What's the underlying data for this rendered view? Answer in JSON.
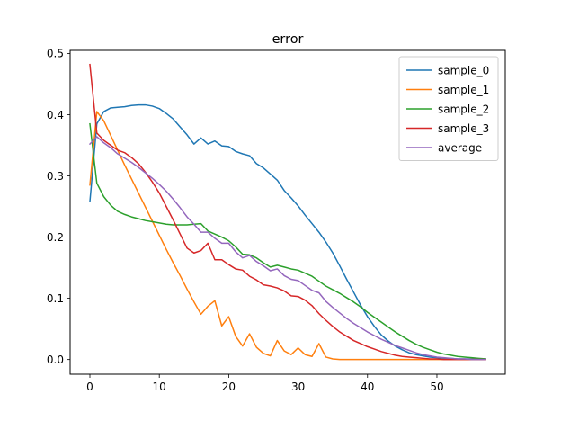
{
  "chart_data": {
    "type": "line",
    "title": "error",
    "xlabel": "",
    "ylabel": "",
    "xlim": [
      -2.85,
      59.85
    ],
    "ylim": [
      -0.024,
      0.505
    ],
    "xticks": [
      0,
      10,
      20,
      30,
      40,
      50
    ],
    "yticks": [
      0.0,
      0.1,
      0.2,
      0.3,
      0.4,
      0.5
    ],
    "xtick_labels": [
      "0",
      "10",
      "20",
      "30",
      "40",
      "50"
    ],
    "ytick_labels": [
      "0.0",
      "0.1",
      "0.2",
      "0.3",
      "0.4",
      "0.5"
    ],
    "grid": false,
    "legend_position": "upper right",
    "series": [
      {
        "name": "sample_0",
        "color": "#1f77b4",
        "x": [
          0,
          1,
          2,
          3,
          4,
          5,
          6,
          7,
          8,
          9,
          10,
          11,
          12,
          13,
          14,
          15,
          16,
          17,
          18,
          19,
          20,
          21,
          22,
          23,
          24,
          25,
          26,
          27,
          28,
          29,
          30,
          31,
          32,
          33,
          34,
          35,
          36,
          37,
          38,
          39,
          40,
          41,
          42,
          43,
          44,
          45,
          46,
          47,
          48,
          49,
          50,
          51,
          52,
          53,
          54,
          55,
          56,
          57
        ],
        "y": [
          0.258,
          0.385,
          0.405,
          0.411,
          0.412,
          0.413,
          0.415,
          0.416,
          0.416,
          0.414,
          0.41,
          0.402,
          0.393,
          0.38,
          0.367,
          0.352,
          0.362,
          0.352,
          0.357,
          0.349,
          0.348,
          0.34,
          0.336,
          0.333,
          0.32,
          0.313,
          0.303,
          0.293,
          0.276,
          0.264,
          0.251,
          0.236,
          0.222,
          0.208,
          0.192,
          0.174,
          0.153,
          0.131,
          0.11,
          0.089,
          0.07,
          0.054,
          0.04,
          0.03,
          0.022,
          0.016,
          0.011,
          0.008,
          0.006,
          0.004,
          0.003,
          0.002,
          0.002,
          0.001,
          0.001,
          0.001,
          0.001,
          0.001
        ]
      },
      {
        "name": "sample_1",
        "color": "#ff7f0e",
        "x": [
          0,
          1,
          2,
          3,
          4,
          5,
          6,
          7,
          8,
          9,
          10,
          11,
          12,
          13,
          14,
          15,
          16,
          17,
          18,
          19,
          20,
          21,
          22,
          23,
          24,
          25,
          26,
          27,
          28,
          29,
          30,
          31,
          32,
          33,
          34,
          35,
          36,
          37,
          38,
          39,
          40,
          41,
          42,
          43,
          44,
          45,
          46,
          47,
          48,
          49,
          50,
          51,
          52,
          53,
          54,
          55,
          56,
          57
        ],
        "y": [
          0.285,
          0.405,
          0.39,
          0.366,
          0.342,
          0.318,
          0.295,
          0.272,
          0.249,
          0.226,
          0.203,
          0.18,
          0.158,
          0.137,
          0.115,
          0.094,
          0.074,
          0.087,
          0.096,
          0.055,
          0.07,
          0.038,
          0.022,
          0.042,
          0.02,
          0.01,
          0.006,
          0.031,
          0.014,
          0.008,
          0.019,
          0.008,
          0.005,
          0.026,
          0.004,
          0.001,
          0,
          0,
          0,
          0,
          0,
          0,
          0,
          0,
          0,
          0,
          0,
          0,
          0,
          0,
          0,
          0,
          0,
          0,
          0,
          0,
          0,
          0
        ]
      },
      {
        "name": "sample_2",
        "color": "#2ca02c",
        "x": [
          0,
          1,
          2,
          3,
          4,
          5,
          6,
          7,
          8,
          9,
          10,
          11,
          12,
          13,
          14,
          15,
          16,
          17,
          18,
          19,
          20,
          21,
          22,
          23,
          24,
          25,
          26,
          27,
          28,
          29,
          30,
          31,
          32,
          33,
          34,
          35,
          36,
          37,
          38,
          39,
          40,
          41,
          42,
          43,
          44,
          45,
          46,
          47,
          48,
          49,
          50,
          51,
          52,
          53,
          54,
          55,
          56,
          57
        ],
        "y": [
          0.385,
          0.288,
          0.266,
          0.252,
          0.242,
          0.237,
          0.233,
          0.23,
          0.227,
          0.225,
          0.223,
          0.221,
          0.22,
          0.22,
          0.22,
          0.221,
          0.222,
          0.21,
          0.205,
          0.2,
          0.194,
          0.184,
          0.172,
          0.171,
          0.166,
          0.158,
          0.151,
          0.154,
          0.151,
          0.148,
          0.146,
          0.141,
          0.136,
          0.128,
          0.12,
          0.114,
          0.108,
          0.101,
          0.094,
          0.086,
          0.077,
          0.069,
          0.061,
          0.053,
          0.045,
          0.038,
          0.031,
          0.025,
          0.02,
          0.016,
          0.012,
          0.009,
          0.007,
          0.005,
          0.004,
          0.003,
          0.002,
          0.001
        ]
      },
      {
        "name": "sample_3",
        "color": "#d62728",
        "x": [
          0,
          1,
          2,
          3,
          4,
          5,
          6,
          7,
          8,
          9,
          10,
          11,
          12,
          13,
          14,
          15,
          16,
          17,
          18,
          19,
          20,
          21,
          22,
          23,
          24,
          25,
          26,
          27,
          28,
          29,
          30,
          31,
          32,
          33,
          34,
          35,
          36,
          37,
          38,
          39,
          40,
          41,
          42,
          43,
          44,
          45,
          46,
          47,
          48,
          49,
          50,
          51,
          52,
          53,
          54,
          55,
          56,
          57
        ],
        "y": [
          0.482,
          0.37,
          0.358,
          0.35,
          0.342,
          0.338,
          0.33,
          0.32,
          0.306,
          0.29,
          0.272,
          0.25,
          0.228,
          0.205,
          0.182,
          0.174,
          0.178,
          0.19,
          0.163,
          0.163,
          0.155,
          0.148,
          0.146,
          0.136,
          0.13,
          0.122,
          0.12,
          0.117,
          0.112,
          0.104,
          0.103,
          0.097,
          0.088,
          0.075,
          0.064,
          0.054,
          0.045,
          0.038,
          0.031,
          0.026,
          0.021,
          0.017,
          0.013,
          0.01,
          0.007,
          0.005,
          0.004,
          0.003,
          0.002,
          0.001,
          0.001,
          0,
          0,
          0,
          0,
          0,
          0,
          0
        ]
      },
      {
        "name": "average",
        "color": "#9467bd",
        "x": [
          0,
          1,
          2,
          3,
          4,
          5,
          6,
          7,
          8,
          9,
          10,
          11,
          12,
          13,
          14,
          15,
          16,
          17,
          18,
          19,
          20,
          21,
          22,
          23,
          24,
          25,
          26,
          27,
          28,
          29,
          30,
          31,
          32,
          33,
          34,
          35,
          36,
          37,
          38,
          39,
          40,
          41,
          42,
          43,
          44,
          45,
          46,
          47,
          48,
          49,
          50,
          51,
          52,
          53,
          54,
          55,
          56,
          57
        ],
        "y": [
          0.352,
          0.364,
          0.354,
          0.346,
          0.336,
          0.329,
          0.322,
          0.314,
          0.305,
          0.296,
          0.286,
          0.275,
          0.262,
          0.248,
          0.233,
          0.221,
          0.208,
          0.208,
          0.198,
          0.19,
          0.19,
          0.176,
          0.166,
          0.17,
          0.16,
          0.153,
          0.145,
          0.148,
          0.137,
          0.131,
          0.129,
          0.121,
          0.113,
          0.109,
          0.095,
          0.085,
          0.076,
          0.067,
          0.059,
          0.052,
          0.045,
          0.039,
          0.033,
          0.028,
          0.023,
          0.019,
          0.015,
          0.011,
          0.008,
          0.006,
          0.004,
          0.003,
          0.002,
          0.001,
          0.001,
          0,
          0,
          0
        ]
      }
    ]
  }
}
